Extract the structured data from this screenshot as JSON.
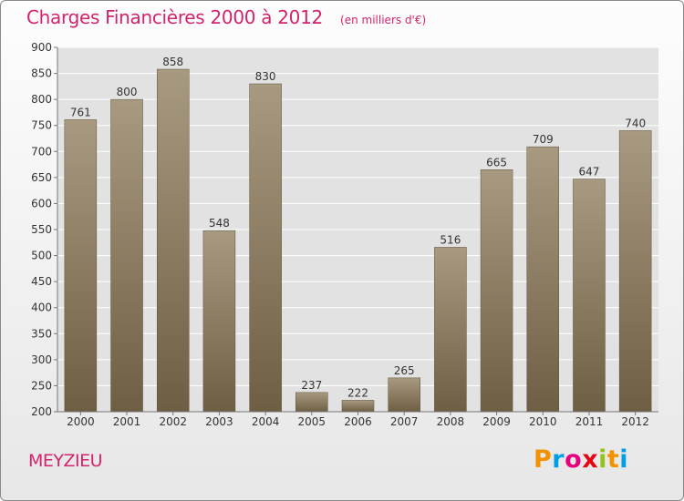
{
  "title": "Charges Financières 2000 à 2012",
  "subtitle": "(en milliers d'€)",
  "city": "MEYZIEU",
  "brand": {
    "letters": [
      "P",
      "r",
      "o",
      "x",
      "i",
      "t",
      "i"
    ],
    "colors": [
      "#f39200",
      "#009fe3",
      "#e6007e",
      "#e30613",
      "#95c11f",
      "#f39200",
      "#009fe3"
    ]
  },
  "colors": {
    "bar_light": "#a89a80",
    "bar_dark": "#6e5e44",
    "plot_bg": "#e2e2e2",
    "grid": "#ffffff",
    "accent": "#d2246e"
  },
  "chart_data": {
    "type": "bar",
    "categories": [
      "2000",
      "2001",
      "2002",
      "2003",
      "2004",
      "2005",
      "2006",
      "2007",
      "2008",
      "2009",
      "2010",
      "2011",
      "2012"
    ],
    "values": [
      761,
      800,
      858,
      548,
      830,
      237,
      222,
      265,
      516,
      665,
      709,
      647,
      740
    ],
    "ylim": [
      200,
      900
    ],
    "yticks": [
      200,
      250,
      300,
      350,
      400,
      450,
      500,
      550,
      600,
      650,
      700,
      750,
      800,
      850,
      900
    ],
    "grid": true,
    "title": "Charges Financières 2000 à 2012",
    "subtitle": "(en milliers d'€)"
  }
}
